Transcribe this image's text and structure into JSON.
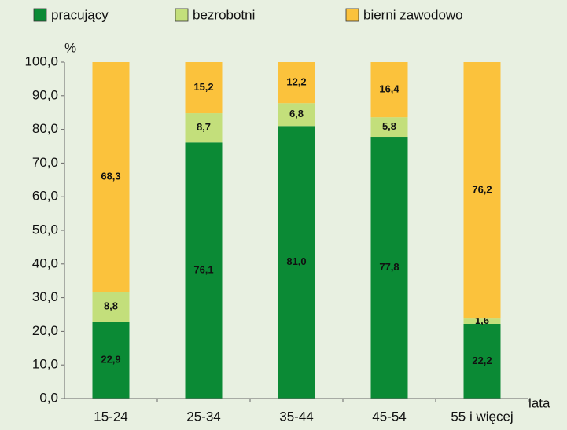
{
  "chart_data": {
    "type": "stacked_bar",
    "axis_label_y": "%",
    "axis_label_x": "lata",
    "categories": [
      "15-24",
      "25-34",
      "35-44",
      "45-54",
      "55 i więcej"
    ],
    "series": [
      {
        "name": "pracujący",
        "color": "#0b8a35",
        "values": [
          22.9,
          76.1,
          81.0,
          77.8,
          22.2
        ],
        "value_labels": [
          "22,9",
          "76,1",
          "81,0",
          "77,8",
          "22,2"
        ]
      },
      {
        "name": "bezrobotni",
        "color": "#c3df7b",
        "values": [
          8.8,
          8.7,
          6.8,
          5.8,
          1.6
        ],
        "value_labels": [
          "8,8",
          "8,7",
          "6,8",
          "5,8",
          "1,6"
        ]
      },
      {
        "name": "bierni zawodowo",
        "color": "#fbc23c",
        "values": [
          68.3,
          15.2,
          12.2,
          16.4,
          76.2
        ],
        "value_labels": [
          "68,3",
          "15,2",
          "12,2",
          "16,4",
          "76,2"
        ]
      }
    ],
    "ylim": [
      0,
      100
    ],
    "yticks": [
      {
        "value": 0,
        "label": "0,0"
      },
      {
        "value": 10,
        "label": "10,0"
      },
      {
        "value": 20,
        "label": "20,0"
      },
      {
        "value": 30,
        "label": "30,0"
      },
      {
        "value": 40,
        "label": "40,0"
      },
      {
        "value": 50,
        "label": "50,0"
      },
      {
        "value": 60,
        "label": "60,0"
      },
      {
        "value": 70,
        "label": "70,0"
      },
      {
        "value": 80,
        "label": "80,0"
      },
      {
        "value": 90,
        "label": "90,0"
      },
      {
        "value": 100,
        "label": "100,0"
      }
    ],
    "grid": false,
    "legend": "top"
  }
}
